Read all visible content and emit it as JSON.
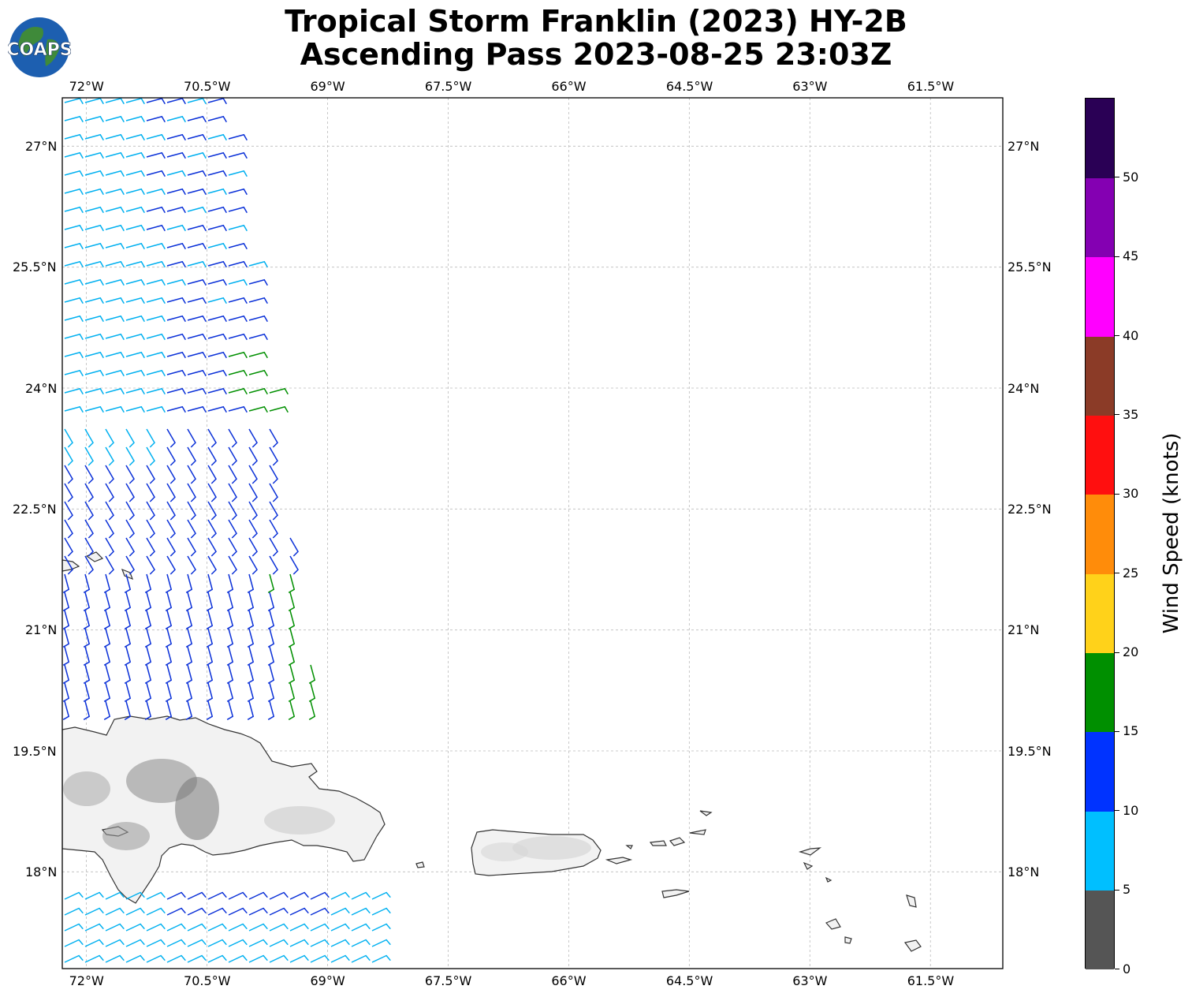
{
  "title": {
    "line1": "Tropical Storm Franklin (2023) HY-2B",
    "line2": "Ascending Pass 2023-08-25 23:03Z"
  },
  "logo": {
    "text": "COAPS",
    "icon": "globe-logo-icon"
  },
  "map": {
    "lon_range": [
      -72.3,
      -60.6
    ],
    "lat_range": [
      16.8,
      27.6
    ],
    "lon_ticks": [
      "72°W",
      "70.5°W",
      "69°W",
      "67.5°W",
      "66°W",
      "64.5°W",
      "63°W",
      "61.5°W"
    ],
    "lat_ticks": [
      "27°N",
      "25.5°N",
      "24°N",
      "22.5°N",
      "21°N",
      "19.5°N",
      "18°N"
    ],
    "gridlines": true,
    "land_color": "#f2f2f2",
    "coast_color": "#333333"
  },
  "colorbar": {
    "label": "Wind Speed (knots)",
    "ticks": [
      "0",
      "5",
      "10",
      "15",
      "20",
      "25",
      "30",
      "35",
      "40",
      "45",
      "50"
    ],
    "colors": [
      "#555555",
      "#00bfff",
      "#0033ff",
      "#008f00",
      "#ffd21a",
      "#ff8c0a",
      "#ff0f0f",
      "#8b3b27",
      "#ff00ff",
      "#8400b2",
      "#2a0055"
    ]
  }
}
